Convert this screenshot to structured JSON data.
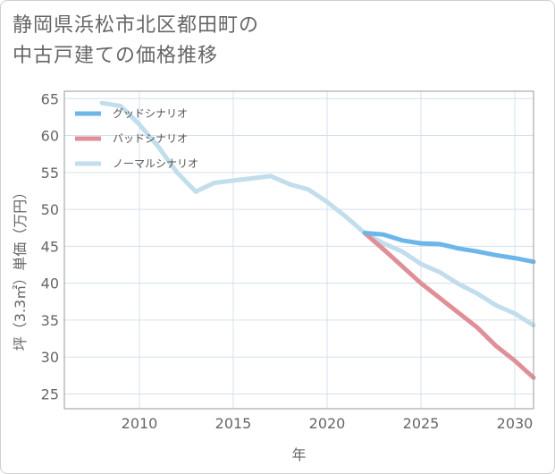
{
  "title_lines": [
    "静岡県浜松市北区都田町の",
    "中古戸建ての価格推移"
  ],
  "chart_data": {
    "type": "line",
    "title": "静岡県浜松市北区都田町の中古戸建ての価格推移",
    "xlabel": "年",
    "ylabel": "坪（3.3㎡）単価（万円）",
    "xlim": [
      2006,
      2031
    ],
    "ylim": [
      23,
      66
    ],
    "xticks": [
      2010,
      2015,
      2020,
      2025,
      2030
    ],
    "yticks": [
      25,
      30,
      35,
      40,
      45,
      50,
      55,
      60,
      65
    ],
    "grid": true,
    "legend_position": "top-left",
    "series": [
      {
        "name": "グッドシナリオ",
        "color": "#6cb6ea",
        "x": [
          2022,
          2023,
          2024,
          2025,
          2026,
          2027,
          2028,
          2029,
          2030,
          2031
        ],
        "y": [
          46.8,
          46.6,
          45.8,
          45.4,
          45.3,
          44.7,
          44.3,
          43.8,
          43.4,
          42.9
        ]
      },
      {
        "name": "バッドシナリオ",
        "color": "#e08f97",
        "x": [
          2022,
          2023,
          2024,
          2025,
          2026,
          2027,
          2028,
          2029,
          2030,
          2031
        ],
        "y": [
          46.8,
          44.6,
          42.3,
          40.0,
          38.0,
          36.0,
          34.0,
          31.5,
          29.5,
          27.2
        ]
      },
      {
        "name": "ノーマルシナリオ",
        "color": "#c2ddec",
        "x": [
          2008,
          2009,
          2010,
          2011,
          2012,
          2013,
          2014,
          2015,
          2016,
          2017,
          2018,
          2019,
          2020,
          2021,
          2022,
          2023,
          2024,
          2025,
          2026,
          2027,
          2028,
          2029,
          2030,
          2031
        ],
        "y": [
          64.4,
          64.0,
          61.5,
          58.5,
          55.0,
          52.4,
          53.6,
          53.9,
          54.2,
          54.5,
          53.4,
          52.7,
          51.0,
          49.0,
          46.8,
          45.4,
          44.3,
          42.6,
          41.5,
          39.9,
          38.6,
          37.0,
          35.9,
          34.3
        ]
      }
    ]
  }
}
